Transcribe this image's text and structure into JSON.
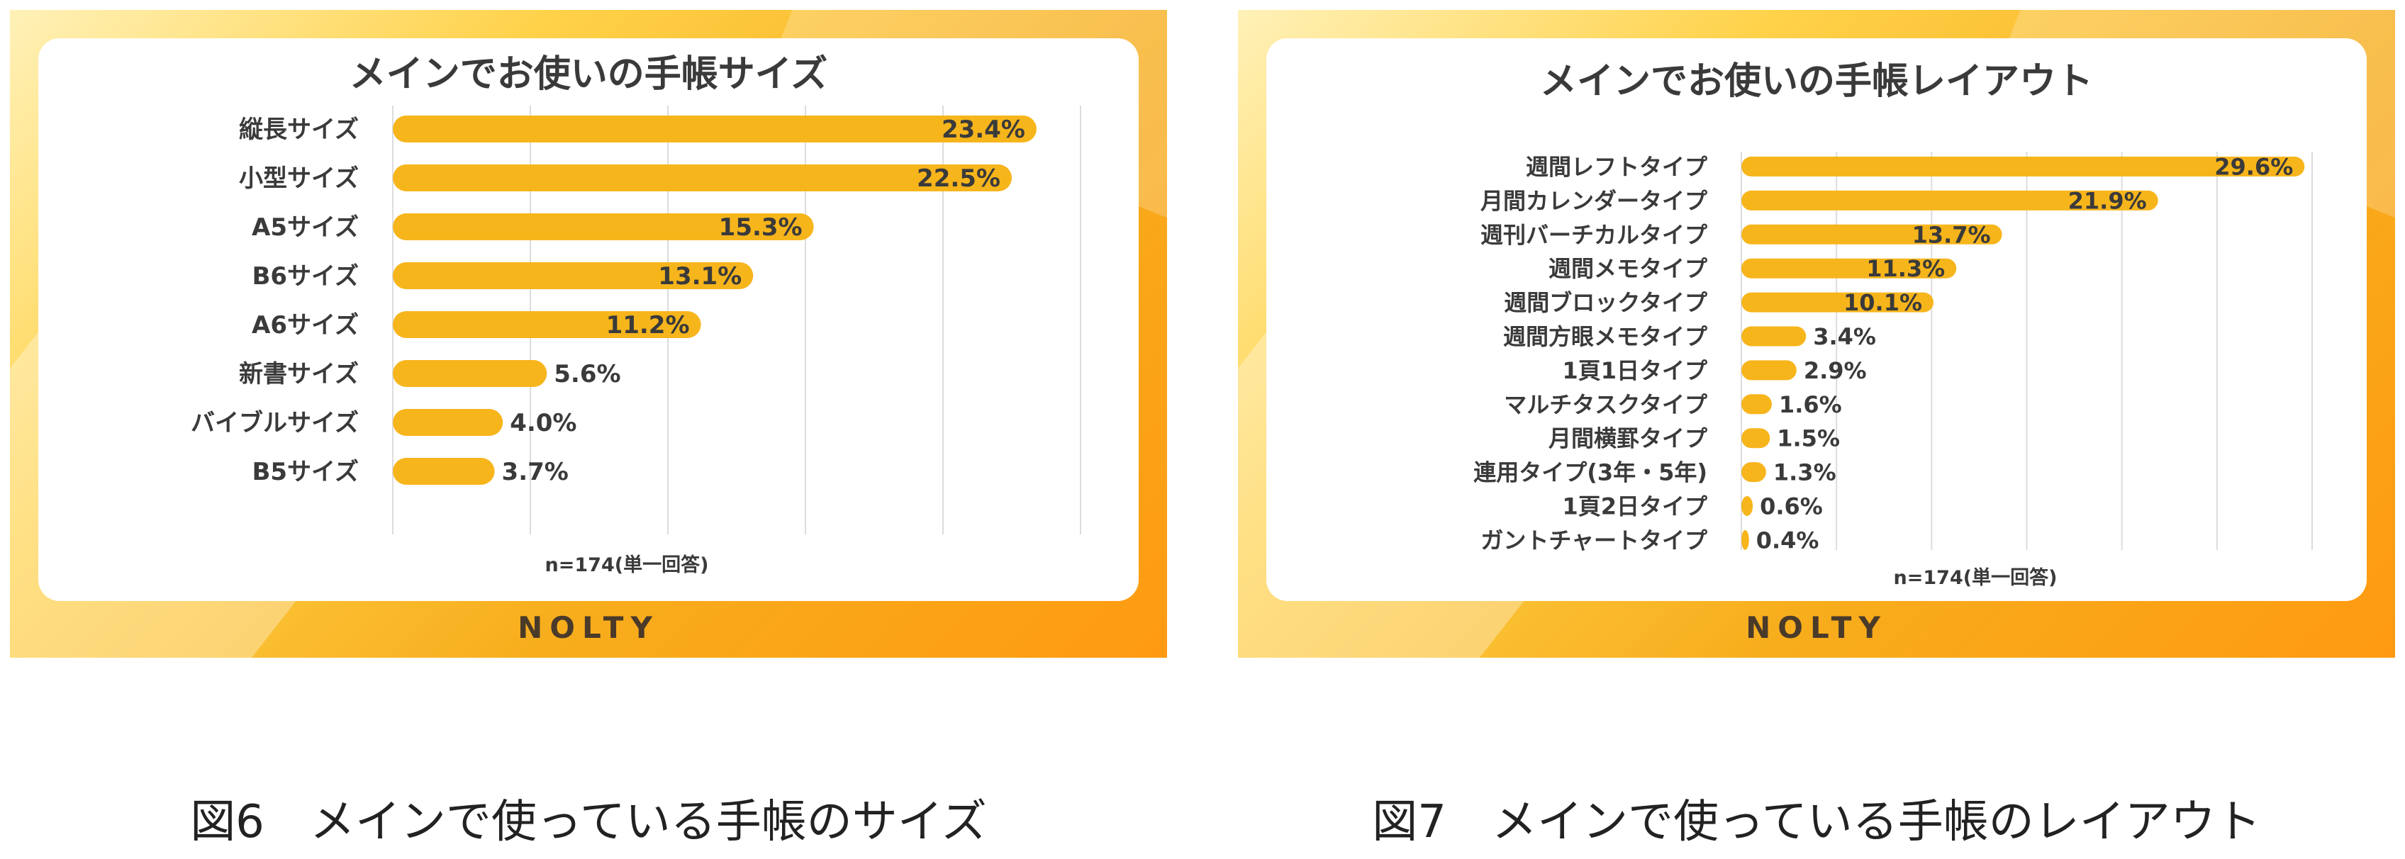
{
  "brand": "NOLTY",
  "captions": [
    "図6　メインで使っている手帳のサイズ",
    "図7　メインで使っている手帳のレイアウト"
  ],
  "chart_data": [
    {
      "type": "bar",
      "orientation": "horizontal",
      "title": "メインでお使いの手帳サイズ",
      "note": "n=174(単一回答)",
      "categories": [
        "縦長サイズ",
        "小型サイズ",
        "A5サイズ",
        "B6サイズ",
        "A6サイズ",
        "新書サイズ",
        "バイブルサイズ",
        "B5サイズ"
      ],
      "values": [
        23.4,
        22.5,
        15.3,
        13.1,
        11.2,
        5.6,
        4.0,
        3.7
      ],
      "value_labels": [
        "23.4%",
        "22.5%",
        "15.3%",
        "13.1%",
        "11.2%",
        "5.6%",
        "4.0%",
        "3.7%"
      ],
      "xlim": [
        0,
        25
      ],
      "grid": true,
      "bar_color": "#f7b51c"
    },
    {
      "type": "bar",
      "orientation": "horizontal",
      "title": "メインでお使いの手帳レイアウト",
      "note": "n=174(単一回答)",
      "categories": [
        "週間レフトタイプ",
        "月間カレンダータイプ",
        "週刊バーチカルタイプ",
        "週間メモタイプ",
        "週間ブロックタイプ",
        "週間方眼メモタイプ",
        "1頁1日タイプ",
        "マルチタスクタイプ",
        "月間横罫タイプ",
        "連用タイプ(3年・5年)",
        "1頁2日タイプ",
        "ガントチャートタイプ"
      ],
      "values": [
        29.6,
        21.9,
        13.7,
        11.3,
        10.1,
        3.4,
        2.9,
        1.6,
        1.5,
        1.3,
        0.6,
        0.4
      ],
      "value_labels": [
        "29.6%",
        "21.9%",
        "13.7%",
        "11.3%",
        "10.1%",
        "3.4%",
        "2.9%",
        "1.6%",
        "1.5%",
        "1.3%",
        "0.6%",
        "0.4%"
      ],
      "xlim": [
        0,
        30
      ],
      "grid": true,
      "bar_color": "#f7b51c"
    }
  ]
}
